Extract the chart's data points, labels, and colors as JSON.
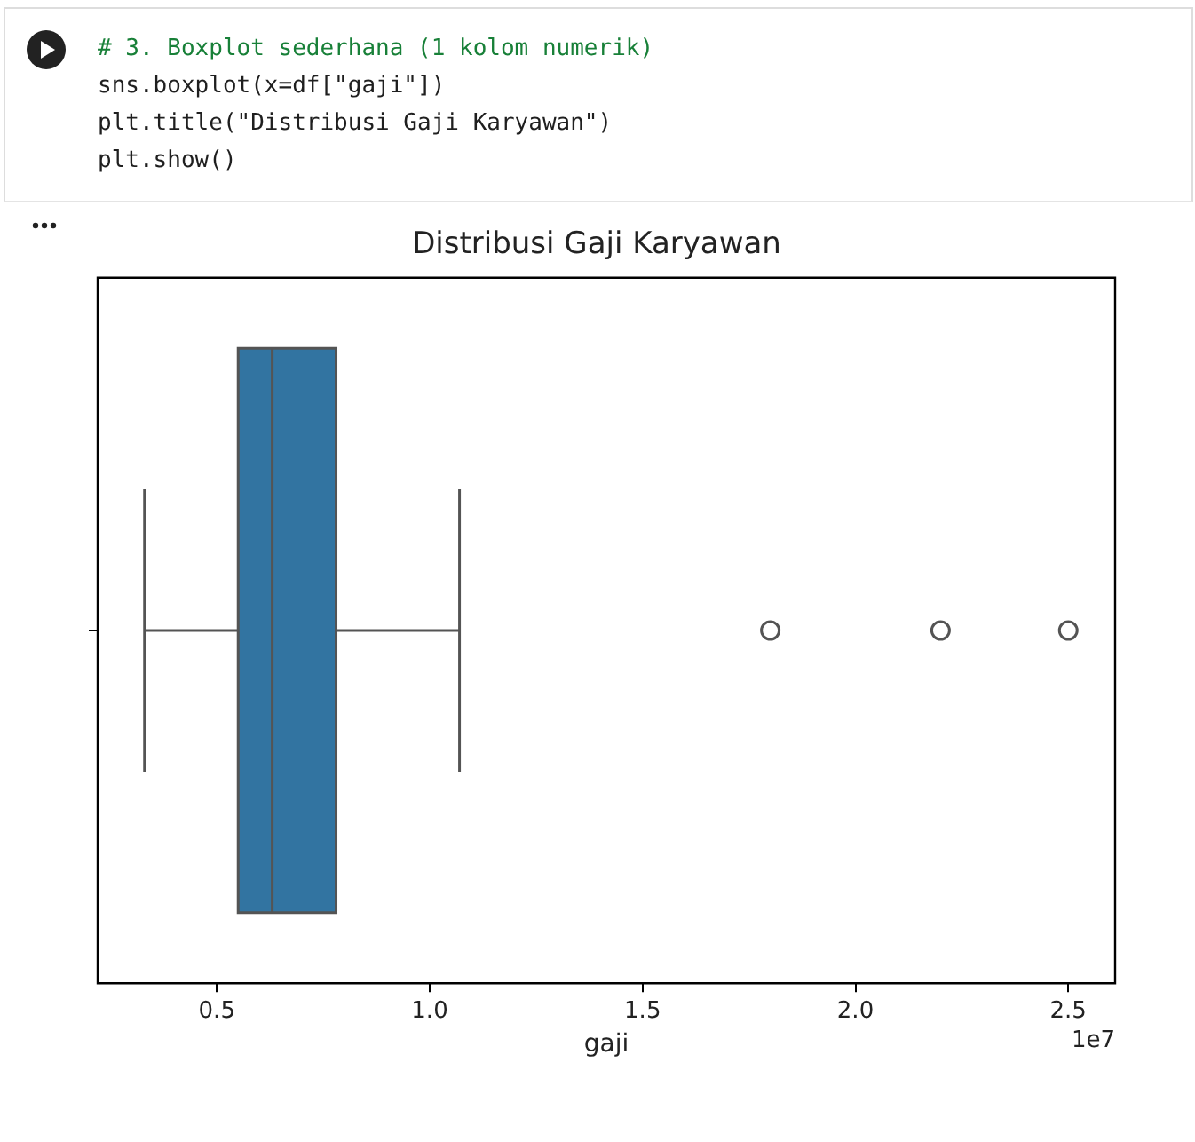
{
  "chart_data": {
    "type": "box",
    "orientation": "horizontal",
    "title": "Distribusi Gaji Karyawan",
    "xlabel": "gaji",
    "categories": [
      null
    ],
    "series": [
      {
        "color": "#3274a1",
        "boxes": [
          {
            "low": 0.33,
            "q1": 0.55,
            "median": 0.63,
            "q3": 0.78,
            "high": 1.07,
            "outliers": [
              1.8,
              2.2,
              2.5
            ]
          }
        ]
      }
    ],
    "xlim": [
      0.22,
      2.61
    ],
    "xticks": [
      0.5,
      {
        "value": 1,
        "label": "1.0"
      },
      1.5,
      {
        "value": 2,
        "label": "2.0"
      },
      2.5
    ],
    "annotations": [
      "# 3. Boxplot sederhana (1 kolom numerik)",
      "sns.boxplot(x=df[\"gaji\"])",
      "plt.title(\"Distribusi Gaji Karyawan\")",
      "plt.show()",
      "1e7"
    ]
  }
}
